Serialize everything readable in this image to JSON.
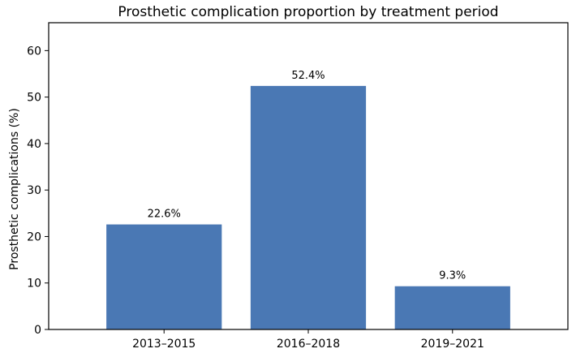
{
  "chart_data": {
    "type": "bar",
    "title": "Prosthetic complication proportion by treatment period",
    "xlabel": "",
    "ylabel": "Prosthetic complications (%)",
    "categories": [
      "2013–2015",
      "2016–2018",
      "2019–2021"
    ],
    "values": [
      22.6,
      52.4,
      9.3
    ],
    "data_labels": [
      "22.6%",
      "52.4%",
      "9.3%"
    ],
    "ylim": [
      0,
      66
    ],
    "yticks": [
      0,
      10,
      20,
      30,
      40,
      50,
      60
    ],
    "grid": false,
    "legend": "none",
    "bar_color": "#4a78b4"
  }
}
